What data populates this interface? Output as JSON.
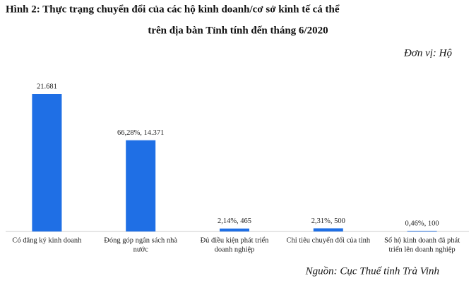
{
  "chart_data": {
    "type": "bar",
    "title": [
      "Hình  2: Thực trạng chuyển đổi của các hộ kinh doanh/cơ sở kinh tế cá thể",
      "trên địa bàn Tỉnh tính đến tháng 6/2020"
    ],
    "unit": "Đơn vị: Hộ",
    "source": "Nguồn: Cục Thuế tỉnh Trà Vinh",
    "categories": [
      [
        "Có đăng ký kinh doanh"
      ],
      [
        "Đóng góp ngân sách nhà",
        "nước"
      ],
      [
        "Đủ điều kiện phát triển",
        "doanh nghiệp"
      ],
      [
        "Chỉ tiêu chuyển đổi của tỉnh"
      ],
      [
        "Số hộ kinh doanh đã phát",
        "triển lên doanh nghiệp"
      ]
    ],
    "values": [
      21681,
      14371,
      465,
      500,
      100
    ],
    "value_labels": [
      "21.681",
      "66,28%, 14.371",
      "2,14%, 465",
      "2,31%, 500",
      "0,46%, 100"
    ],
    "color": "#1f6fe5"
  }
}
